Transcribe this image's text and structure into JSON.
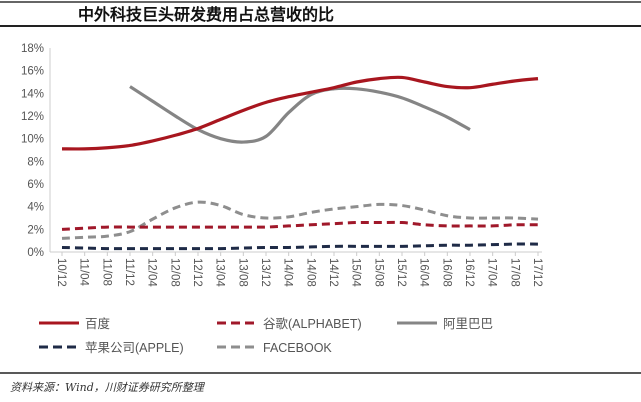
{
  "chart_data": {
    "type": "line",
    "title": "中外科技巨头研发费用占总营收的比",
    "xlabel": "",
    "ylabel": "",
    "ylim": [
      0,
      18
    ],
    "yticks": [
      "0%",
      "2%",
      "4%",
      "6%",
      "8%",
      "10%",
      "12%",
      "14%",
      "16%",
      "18%"
    ],
    "ytick_values": [
      0,
      2,
      4,
      6,
      8,
      10,
      12,
      14,
      16,
      18
    ],
    "categories": [
      "10/12",
      "11/04",
      "11/08",
      "11/12",
      "12/04",
      "12/08",
      "12/12",
      "13/04",
      "13/08",
      "13/12",
      "14/04",
      "14/08",
      "14/12",
      "15/04",
      "15/08",
      "15/12",
      "16/04",
      "16/08",
      "16/12",
      "17/04",
      "17/08",
      "17/12"
    ],
    "grid": false,
    "legend_position": "bottom",
    "series": [
      {
        "name": "百度",
        "style": "solid",
        "color": "#a8161f",
        "values": [
          9.1,
          9.1,
          9.2,
          9.4,
          9.8,
          10.3,
          10.9,
          11.7,
          12.5,
          13.2,
          13.7,
          14.1,
          14.5,
          15.0,
          15.3,
          15.4,
          15.0,
          14.6,
          14.5,
          14.8,
          15.1,
          15.3
        ]
      },
      {
        "name": "谷歌(ALPHABET)",
        "style": "dashed",
        "color": "#a0182a",
        "values": [
          2.0,
          2.1,
          2.2,
          2.2,
          2.2,
          2.2,
          2.2,
          2.2,
          2.2,
          2.2,
          2.3,
          2.4,
          2.5,
          2.6,
          2.6,
          2.6,
          2.4,
          2.3,
          2.3,
          2.3,
          2.4,
          2.4
        ]
      },
      {
        "name": "阿里巴巴",
        "style": "solid",
        "color": "#858585",
        "values": [
          null,
          null,
          null,
          14.6,
          13.3,
          12.0,
          10.8,
          10.0,
          9.7,
          10.2,
          12.3,
          13.9,
          14.4,
          14.4,
          14.1,
          13.6,
          12.8,
          11.9,
          10.8,
          null,
          null,
          null
        ]
      },
      {
        "name": "苹果公司(APPLE)",
        "style": "dashed",
        "color": "#1f2b47",
        "values": [
          0.4,
          0.35,
          0.3,
          0.3,
          0.3,
          0.3,
          0.3,
          0.3,
          0.35,
          0.4,
          0.4,
          0.45,
          0.5,
          0.5,
          0.5,
          0.5,
          0.55,
          0.6,
          0.6,
          0.65,
          0.7,
          0.7
        ]
      },
      {
        "name": "FACEBOOK",
        "style": "dashed",
        "color": "#8e8e8e",
        "values": [
          1.2,
          1.3,
          1.4,
          1.8,
          2.9,
          3.9,
          4.4,
          4.1,
          3.3,
          3.0,
          3.1,
          3.5,
          3.8,
          4.0,
          4.2,
          4.1,
          3.7,
          3.2,
          3.0,
          3.0,
          3.0,
          2.9
        ]
      }
    ],
    "source": "资料来源：Wind，川财证券研究所整理"
  }
}
